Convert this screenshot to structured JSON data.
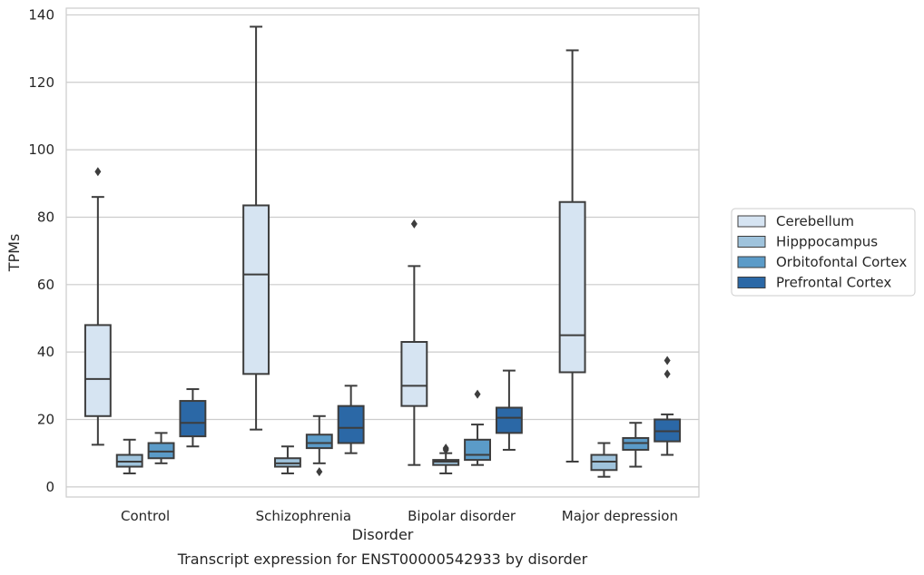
{
  "caption": "Transcript expression for ENST00000542933 by disorder",
  "chart_data": {
    "type": "box",
    "title": "",
    "xlabel": "Disorder",
    "ylabel": "TPMs",
    "ylim": [
      -3,
      142
    ],
    "yticks": [
      0,
      20,
      40,
      60,
      80,
      100,
      120,
      140
    ],
    "grid": "horizontal",
    "legend_position": "right",
    "categories": [
      "Control",
      "Schizophrenia",
      "Bipolar disorder",
      "Major depression"
    ],
    "series": [
      {
        "name": "Cerebellum",
        "color": "#d6e4f2",
        "boxes": [
          {
            "whisker_low": 12.5,
            "q1": 21,
            "median": 32,
            "q3": 48,
            "whisker_high": 86,
            "outliers": [
              93.5
            ]
          },
          {
            "whisker_low": 17,
            "q1": 33.5,
            "median": 63,
            "q3": 83.5,
            "whisker_high": 136.5,
            "outliers": []
          },
          {
            "whisker_low": 6.5,
            "q1": 24,
            "median": 30,
            "q3": 43,
            "whisker_high": 65.5,
            "outliers": [
              78
            ]
          },
          {
            "whisker_low": 7.5,
            "q1": 34,
            "median": 45,
            "q3": 84.5,
            "whisker_high": 129.5,
            "outliers": []
          }
        ]
      },
      {
        "name": "Hipppocampus",
        "color": "#9fc3dc",
        "boxes": [
          {
            "whisker_low": 4,
            "q1": 6,
            "median": 7.5,
            "q3": 9.5,
            "whisker_high": 14,
            "outliers": []
          },
          {
            "whisker_low": 4,
            "q1": 6,
            "median": 7,
            "q3": 8.5,
            "whisker_high": 12,
            "outliers": []
          },
          {
            "whisker_low": 4,
            "q1": 6.5,
            "median": 7.5,
            "q3": 8,
            "whisker_high": 10,
            "outliers": [
              11,
              11.5
            ]
          },
          {
            "whisker_low": 3,
            "q1": 5,
            "median": 7.5,
            "q3": 9.5,
            "whisker_high": 13,
            "outliers": []
          }
        ]
      },
      {
        "name": "Orbitofontal Cortex",
        "color": "#5b9bc8",
        "boxes": [
          {
            "whisker_low": 7,
            "q1": 8.5,
            "median": 10.5,
            "q3": 13,
            "whisker_high": 16,
            "outliers": []
          },
          {
            "whisker_low": 7,
            "q1": 11.5,
            "median": 13,
            "q3": 15.5,
            "whisker_high": 21,
            "outliers": [
              4.5
            ]
          },
          {
            "whisker_low": 6.5,
            "q1": 8,
            "median": 9.5,
            "q3": 14,
            "whisker_high": 18.5,
            "outliers": [
              27.5
            ]
          },
          {
            "whisker_low": 6,
            "q1": 11,
            "median": 13,
            "q3": 14.5,
            "whisker_high": 19,
            "outliers": []
          }
        ]
      },
      {
        "name": "Prefrontal Cortex",
        "color": "#2b68a6",
        "boxes": [
          {
            "whisker_low": 12,
            "q1": 15,
            "median": 19,
            "q3": 25.5,
            "whisker_high": 29,
            "outliers": []
          },
          {
            "whisker_low": 10,
            "q1": 13,
            "median": 17.5,
            "q3": 24,
            "whisker_high": 30,
            "outliers": []
          },
          {
            "whisker_low": 11,
            "q1": 16,
            "median": 20.5,
            "q3": 23.5,
            "whisker_high": 34.5,
            "outliers": []
          },
          {
            "whisker_low": 9.5,
            "q1": 13.5,
            "median": 16.5,
            "q3": 20,
            "whisker_high": 21.5,
            "outliers": [
              33.5,
              37.5
            ]
          }
        ]
      }
    ]
  }
}
